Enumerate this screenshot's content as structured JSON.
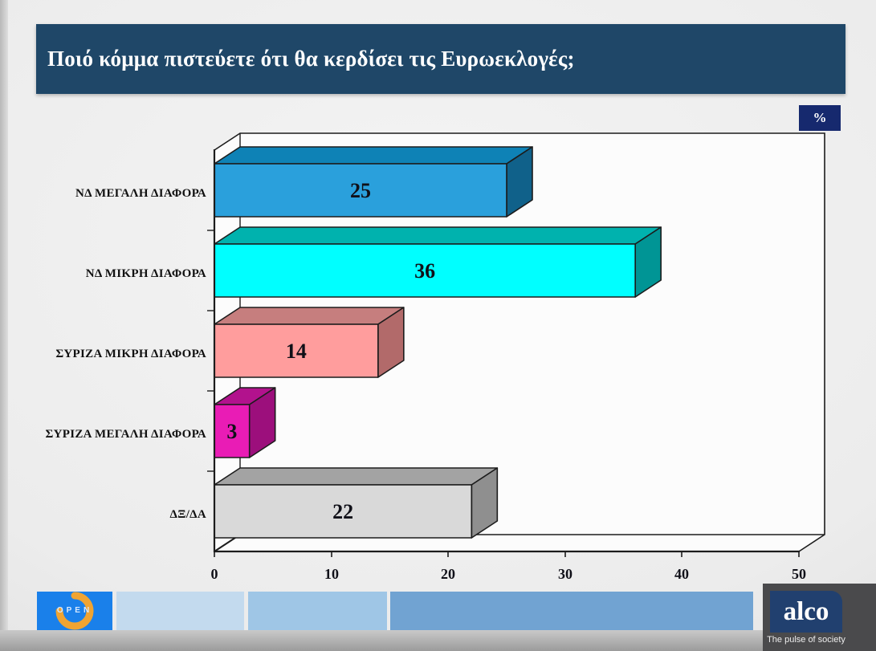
{
  "title": "Ποιό κόμμα πιστεύετε ότι θα κερδίσει τις Ευρωεκλογές;",
  "unit_badge": "%",
  "chart_data": {
    "type": "bar",
    "orientation": "horizontal",
    "style": "3d",
    "title": "Ποιό κόμμα πιστεύετε ότι θα κερδίσει τις Ευρωεκλογές;",
    "categories": [
      "ΝΔ ΜΕΓΑΛΗ ΔΙΑΦΟΡΑ",
      "ΝΔ ΜΙΚΡΗ ΔΙΑΦΟΡΑ",
      "ΣΥΡΙΖΑ ΜΙΚΡΗ ΔΙΑΦΟΡΑ",
      "ΣΥΡΙΖΑ ΜΕΓΑΛΗ ΔΙΑΦΟΡΑ",
      "ΔΞ/ΔΑ"
    ],
    "values": [
      25,
      36,
      14,
      3,
      22
    ],
    "unit": "%",
    "x_ticks": [
      "0",
      "10",
      "20",
      "30",
      "40",
      "50"
    ],
    "xlim": [
      0,
      50
    ],
    "grid": false,
    "legend": false,
    "bar_colors": [
      {
        "front": "#2AA0DC",
        "top": "#0E82B6",
        "side": "#10618A"
      },
      {
        "front": "#00FFFF",
        "top": "#00B2AE",
        "side": "#009595"
      },
      {
        "front": "#FF9D9D",
        "top": "#C67E7E",
        "side": "#B26A6A"
      },
      {
        "front": "#E91CB5",
        "top": "#B2128D",
        "side": "#9C0F7C"
      },
      {
        "front": "#D9D9D9",
        "top": "#A3A3A3",
        "side": "#8F8F8F"
      }
    ]
  },
  "colors": {
    "title_bar_bg": "#1F4768",
    "badge_bg": "#16296E",
    "plot_bg": "#FCFCFC",
    "frame_stroke": "#1C1C1C"
  },
  "footer": {
    "open_logo_text": "OPEN",
    "open_bg": "#1A80EA",
    "open_arc": "#F0A432",
    "strip_colors": [
      "#C3DAEE",
      "#9FC6E6",
      "#71A3D2"
    ],
    "alco_logo_text": "alco",
    "alco_tagline": "The pulse of society",
    "alco_bg": "#21406F",
    "alco_panel_bg": "#4A4A4C"
  }
}
